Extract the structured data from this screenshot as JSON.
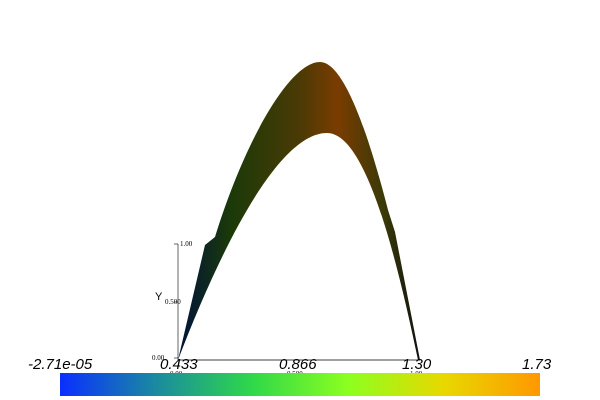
{
  "scene": {
    "colormap": [
      "#0a2fff",
      "#1a8aa0",
      "#2fd84a",
      "#8cff1f",
      "#e8d800",
      "#ff9800"
    ],
    "surface_colors": [
      "#00123a",
      "#1b3a08",
      "#4a3a05",
      "#7a3c00",
      "#3a3a08",
      "#101010"
    ]
  },
  "axes": {
    "y_title": "Y",
    "y_ticks": [
      "1.00",
      "0.500",
      "0.00"
    ],
    "x_ticks": [
      "0.00",
      "0.500",
      "1.00"
    ]
  },
  "scalar_bar": {
    "labels": [
      "-2.71e-05",
      "0.433",
      "0.866",
      "1.30",
      "1.73"
    ]
  }
}
